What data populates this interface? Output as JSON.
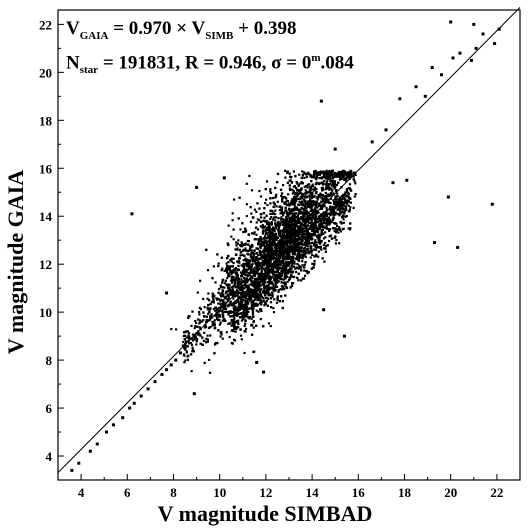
{
  "chart_data": {
    "type": "scatter",
    "title": "",
    "xlabel": "V magnitude SIMBAD",
    "ylabel": "V magnitude GAIA",
    "xlim": [
      3,
      23
    ],
    "ylim": [
      3,
      22.6
    ],
    "xticks": [
      4,
      6,
      8,
      10,
      12,
      14,
      16,
      18,
      20,
      22
    ],
    "yticks": [
      4,
      6,
      8,
      10,
      12,
      14,
      16,
      18,
      20,
      22
    ],
    "grid": false,
    "fit_line": {
      "slope": 0.97,
      "intercept": 0.398
    },
    "annotations": {
      "equation": {
        "lhs_main": "V",
        "lhs_sub": "GAIA",
        "eq": " = 0.970 × V",
        "rhs_sub": "SIMB",
        "tail": " + 0.398"
      },
      "stats": {
        "n_main": "N",
        "n_sub": "star",
        "n_val": " = 191831, R = 0.946, σ = 0",
        "sigma_sup": "m",
        "sigma_tail": ".084"
      }
    },
    "series": [
      {
        "points": [
          [
            3.6,
            3.4
          ],
          [
            3.9,
            3.7
          ],
          [
            4.4,
            4.2
          ],
          [
            4.7,
            4.5
          ],
          [
            5.1,
            5.0
          ],
          [
            5.4,
            5.3
          ],
          [
            5.8,
            5.6
          ],
          [
            6.1,
            6.0
          ],
          [
            6.3,
            6.2
          ],
          [
            6.6,
            6.5
          ],
          [
            6.9,
            6.8
          ],
          [
            7.2,
            7.1
          ],
          [
            7.5,
            7.4
          ],
          [
            7.7,
            7.6
          ],
          [
            7.9,
            7.8
          ],
          [
            8.1,
            8.0
          ],
          [
            8.3,
            8.3
          ],
          [
            6.2,
            14.1
          ],
          [
            9.0,
            15.2
          ],
          [
            10.2,
            15.6
          ],
          [
            17.5,
            15.4
          ],
          [
            18.1,
            15.5
          ],
          [
            19.9,
            14.8
          ],
          [
            20.3,
            12.7
          ],
          [
            21.8,
            14.5
          ],
          [
            19.3,
            12.9
          ],
          [
            11.6,
            7.9
          ],
          [
            11.9,
            7.5
          ],
          [
            8.9,
            6.6
          ],
          [
            9.6,
            9.8
          ],
          [
            7.7,
            10.8
          ],
          [
            15.4,
            9.0
          ],
          [
            14.5,
            10.1
          ],
          [
            14.4,
            18.8
          ],
          [
            15.0,
            16.8
          ],
          [
            16.6,
            17.1
          ],
          [
            17.8,
            18.9
          ],
          [
            18.5,
            19.4
          ],
          [
            19.2,
            20.2
          ],
          [
            19.6,
            19.9
          ],
          [
            20.1,
            20.6
          ],
          [
            20.4,
            20.8
          ],
          [
            20.9,
            20.5
          ],
          [
            21.1,
            21.0
          ],
          [
            21.4,
            21.6
          ],
          [
            21.9,
            21.2
          ],
          [
            22.1,
            21.8
          ],
          [
            20.0,
            22.1
          ],
          [
            21.0,
            22.0
          ],
          [
            17.2,
            17.6
          ],
          [
            18.9,
            19.0
          ]
        ]
      }
    ]
  }
}
